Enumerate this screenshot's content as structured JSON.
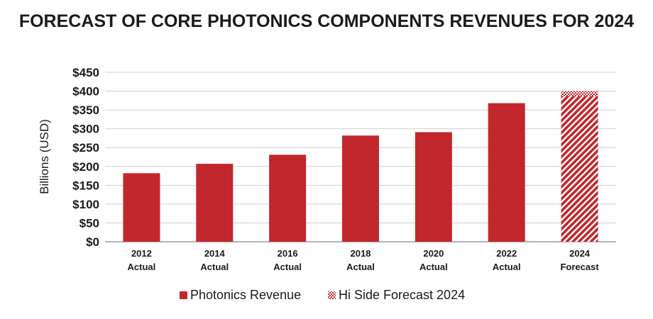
{
  "chart_data": {
    "type": "bar",
    "title": "FORECAST OF CORE PHOTONICS COMPONENTS REVENUES FOR 2024",
    "ylabel": "Billions (USD)",
    "xlabel": "",
    "ylim": [
      0,
      450
    ],
    "yticks": [
      0,
      50,
      100,
      150,
      200,
      250,
      300,
      350,
      400,
      450
    ],
    "ytick_labels": [
      "$0",
      "$50",
      "$100",
      "$150",
      "$200",
      "$250",
      "$300",
      "$350",
      "$400",
      "$450"
    ],
    "grid": true,
    "legend_position": "bottom",
    "categories": [
      {
        "year": "2012",
        "status": "Actual"
      },
      {
        "year": "2014",
        "status": "Actual"
      },
      {
        "year": "2016",
        "status": "Actual"
      },
      {
        "year": "2018",
        "status": "Actual"
      },
      {
        "year": "2020",
        "status": "Actual"
      },
      {
        "year": "2022",
        "status": "Actual"
      },
      {
        "year": "2024",
        "status": "Forecast"
      }
    ],
    "series": [
      {
        "name": "Photonics Revenue",
        "style": "solid",
        "color": "#c1272d",
        "values": [
          182,
          207,
          231,
          282,
          291,
          368,
          null
        ]
      },
      {
        "name": "Hi Side Forecast 2024",
        "style": "hatched",
        "color": "#c1272d",
        "values": [
          null,
          null,
          null,
          null,
          null,
          null,
          400
        ]
      }
    ]
  }
}
